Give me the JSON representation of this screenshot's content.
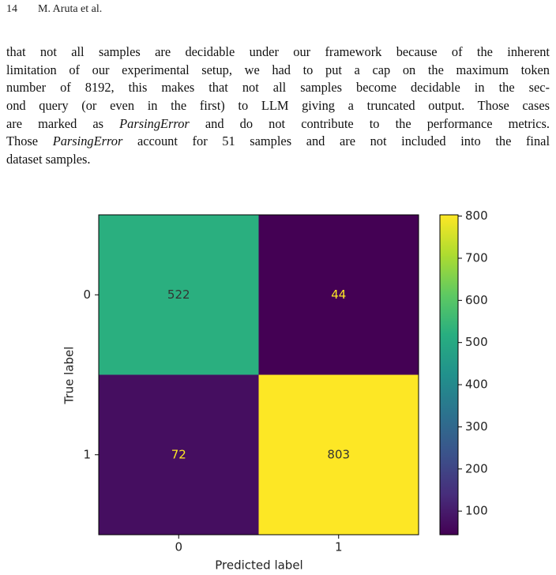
{
  "header": {
    "page": "14",
    "authors": "M. Aruta et al."
  },
  "paragraph": [
    [
      {
        "text": "that not all samples are decidable under our framework because of the inherent",
        "italic": false
      }
    ],
    [
      {
        "text": "limitation of our experimental setup, we had to put a cap on the maximum token",
        "italic": false
      }
    ],
    [
      {
        "text": "number of 8192, this makes that not all samples become decidable in the sec-",
        "italic": false
      }
    ],
    [
      {
        "text": "ond query (or even in the first) to LLM giving a truncated output. Those cases",
        "italic": false
      }
    ],
    [
      {
        "text": "are marked as ",
        "italic": false
      },
      {
        "text": "ParsingError",
        "italic": true
      },
      {
        "text": " and do not contribute to the performance metrics.",
        "italic": false
      }
    ],
    [
      {
        "text": "Those ",
        "italic": false
      },
      {
        "text": "ParsingError",
        "italic": true
      },
      {
        "text": " account for 51 samples and are not included into the final",
        "italic": false
      }
    ],
    [
      {
        "text": "dataset samples.",
        "italic": false
      }
    ]
  ],
  "chart_data": {
    "type": "heatmap",
    "x_label": "Predicted label",
    "y_label": "True label",
    "x_categories": [
      "0",
      "1"
    ],
    "y_categories": [
      "0",
      "1"
    ],
    "values": [
      [
        522,
        44
      ],
      [
        72,
        803
      ]
    ],
    "colormap": "viridis",
    "clim": [
      44,
      803
    ],
    "cticks": [
      100,
      200,
      300,
      400,
      500,
      600,
      700,
      800
    ]
  }
}
